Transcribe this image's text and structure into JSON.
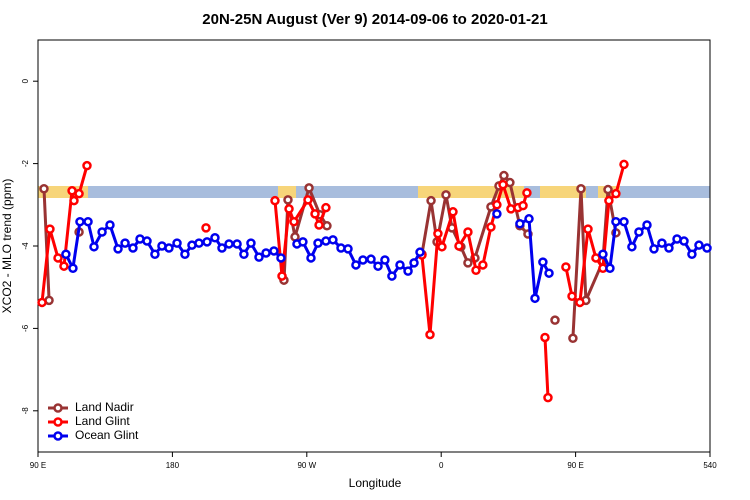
{
  "chart_data": {
    "type": "line",
    "title": "20N-25N August (Ver 9)   2014-09-06 to 2020-01-21",
    "xlabel": "Longitude",
    "ylabel": "XCO2 - MLO trend (ppm)",
    "xlim": [
      90,
      540
    ],
    "ylim": [
      -9,
      1
    ],
    "xticks": [
      {
        "value": 90,
        "label": "90 E"
      },
      180,
      {
        "value": 270,
        "label": "90 W"
      },
      {
        "value": 360,
        "label": "0"
      },
      {
        "value": 450,
        "label": "90 E"
      },
      540
    ],
    "yticks": [
      0,
      -2,
      -4,
      -6,
      -8
    ],
    "legend": "bottom-left",
    "series": [
      {
        "name": "Land Nadir",
        "color": "#993333",
        "x": [
          94.0,
          97.4,
          null,
          117.5,
          null,
          254.7,
          257.4,
          262.1,
          271.5,
          278.8,
          283.5,
          null,
          347.1,
          353.2,
          357.2,
          363.2,
          367.2,
          373.2,
          377.9,
          382.6,
          393.3,
          398.7,
          402.0,
          406.0,
          412.7,
          418.1,
          null,
          436.2,
          null,
          448.2,
          453.6,
          456.9,
          468.3,
          471.7,
          477.0
        ],
        "values": [
          -2.61,
          -5.32,
          null,
          -3.66,
          null,
          -4.83,
          -2.88,
          -3.78,
          -2.59,
          -3.24,
          -3.51,
          null,
          -4.2,
          -2.9,
          -3.9,
          -2.76,
          -3.56,
          -4.02,
          -4.41,
          -4.29,
          -3.05,
          -2.54,
          -2.29,
          -2.46,
          -3.51,
          -3.71,
          null,
          -5.8,
          null,
          -6.24,
          -2.61,
          -5.32,
          -4.37,
          -2.63,
          -3.68
        ]
      },
      {
        "name": "Land Glint",
        "color": "#ff0000",
        "x": [
          92.7,
          98.0,
          103.4,
          107.4,
          112.8,
          114.1,
          117.5,
          122.8,
          null,
          202.5,
          null,
          248.7,
          253.4,
          258.1,
          261.4,
          270.8,
          275.5,
          278.2,
          282.8,
          null,
          347.1,
          352.5,
          357.8,
          360.5,
          367.9,
          371.9,
          377.9,
          383.3,
          387.9,
          393.3,
          397.3,
          401.4,
          406.7,
          411.4,
          414.8,
          417.4,
          null,
          429.5,
          431.5,
          null,
          443.5,
          447.6,
          452.9,
          458.3,
          463.6,
          468.3,
          472.3,
          477.0,
          482.4
        ],
        "values": [
          -5.37,
          -3.59,
          -4.29,
          -4.49,
          -2.66,
          -2.9,
          -2.73,
          -2.05,
          null,
          -3.56,
          null,
          -2.9,
          -4.73,
          -3.1,
          -3.41,
          -2.88,
          -3.22,
          -3.49,
          -3.07,
          null,
          -4.22,
          -6.15,
          -3.7,
          -4.02,
          -3.17,
          -4.0,
          -3.66,
          -4.59,
          -4.46,
          -3.54,
          -3.0,
          -2.51,
          -3.1,
          -3.07,
          -3.02,
          -2.71,
          null,
          -6.22,
          -7.68,
          null,
          -4.51,
          -5.22,
          -5.37,
          -3.59,
          -4.29,
          -4.54,
          -2.9,
          -2.73,
          -2.02
        ]
      },
      {
        "name": "Ocean Glint",
        "color": "#0000ee",
        "x": [
          108.7,
          113.4,
          118.1,
          123.5,
          127.5,
          132.9,
          138.2,
          143.6,
          148.3,
          153.6,
          158.3,
          163.0,
          168.3,
          173.0,
          177.7,
          183.1,
          188.4,
          193.1,
          197.8,
          203.2,
          208.5,
          213.2,
          217.9,
          223.3,
          227.9,
          232.6,
          238.0,
          242.7,
          248.0,
          252.7,
          null,
          263.4,
          267.4,
          272.8,
          277.5,
          282.8,
          287.5,
          292.9,
          297.6,
          302.9,
          307.6,
          313.0,
          317.7,
          322.3,
          327.0,
          332.4,
          337.8,
          341.8,
          345.8,
          null,
          397.3,
          null,
          412.7,
          418.8,
          422.8,
          428.1,
          432.2,
          null,
          468.3,
          473.0,
          477.0,
          482.4,
          487.7,
          492.4,
          497.8,
          502.5,
          507.8,
          512.5,
          517.9,
          522.6,
          527.9,
          532.6,
          538.0
        ],
        "values": [
          -4.2,
          -4.54,
          -3.41,
          -3.41,
          -4.02,
          -3.66,
          -3.49,
          -4.07,
          -3.93,
          -4.05,
          -3.83,
          -3.88,
          -4.2,
          -4.0,
          -4.05,
          -3.93,
          -4.2,
          -3.98,
          -3.93,
          -3.9,
          -3.8,
          -4.05,
          -3.95,
          -3.95,
          -4.2,
          -3.93,
          -4.27,
          -4.17,
          -4.12,
          -4.29,
          null,
          -3.95,
          -3.9,
          -4.29,
          -3.93,
          -3.88,
          -3.85,
          -4.05,
          -4.07,
          -4.46,
          -4.34,
          -4.32,
          -4.49,
          -4.34,
          -4.73,
          -4.46,
          -4.61,
          -4.41,
          -4.15,
          null,
          -3.22,
          null,
          -3.46,
          -3.34,
          -5.27,
          -4.39,
          -4.66,
          null,
          -4.2,
          -4.54,
          -3.41,
          -3.41,
          -4.02,
          -3.66,
          -3.49,
          -4.07,
          -3.93,
          -4.05,
          -3.83,
          -3.88,
          -4.2,
          -3.98,
          -4.05
        ]
      }
    ]
  }
}
